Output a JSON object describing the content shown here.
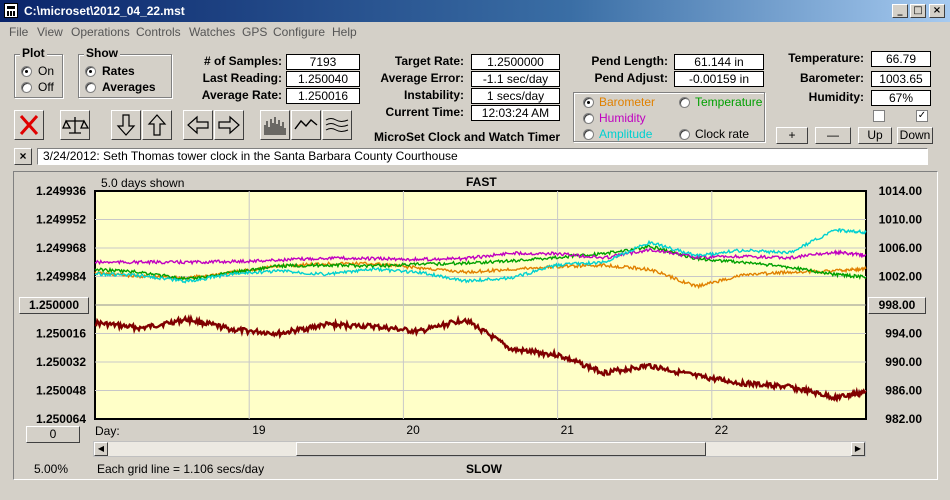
{
  "window": {
    "title": "C:\\microset\\2012_04_22.mst",
    "controls": [
      "_",
      "□",
      "×"
    ]
  },
  "menu": [
    "File",
    "View",
    "Operations",
    "Controls",
    "Watches",
    "GPS",
    "Configure",
    "Help"
  ],
  "plot": {
    "label": "Plot",
    "on": "On",
    "off": "Off",
    "selected": "On"
  },
  "show": {
    "label": "Show",
    "rates": "Rates",
    "averages": "Averages",
    "selected": "Rates"
  },
  "stats": {
    "samples_label": "# of Samples:",
    "samples": "7193",
    "last_label": "Last Reading:",
    "last": "1.250040",
    "avg_label": "Average Rate:",
    "avg": "1.250016",
    "target_label": "Target Rate:",
    "target": "1.2500000",
    "error_label": "Average Error:",
    "error": "-1.1 sec/day",
    "instab_label": "Instability:",
    "instab": "1 secs/day",
    "time_label": "Current Time:",
    "time": "12:03:24 AM",
    "pend_len_label": "Pend Length:",
    "pend_len": "61.144 in",
    "pend_adj_label": "Pend Adjust:",
    "pend_adj": "-0.00159 in",
    "temp_label": "Temperature:",
    "temp": "66.79",
    "baro_label": "Barometer:",
    "baro": "1003.65",
    "hum_label": "Humidity:",
    "hum": "67%"
  },
  "app_name": "MicroSet Clock and Watch Timer",
  "overlays": {
    "barometer": {
      "label": "Barometer",
      "color": "#e08000",
      "selected": true
    },
    "temperature": {
      "label": "Temperature",
      "color": "#00a000",
      "selected": false
    },
    "humidity": {
      "label": "Humidity",
      "color": "#c000c0",
      "selected": false
    },
    "amplitude": {
      "label": "Amplitude",
      "color": "#00d0d0",
      "selected": false
    },
    "clock_rate": {
      "label": "Clock rate",
      "color": "#000000",
      "selected": false
    }
  },
  "side_buttons": {
    "plus": "+",
    "minus": "—",
    "up": "Up",
    "down": "Down"
  },
  "note": {
    "close": "×",
    "text": "3/24/2012: Seth Thomas tower clock in the Santa Barbara County Courthouse"
  },
  "graph": {
    "days_shown": "5.0 days shown",
    "fast": "FAST",
    "slow": "SLOW",
    "center_left": "1.250000",
    "center_right": "998.00",
    "offset_value": "0",
    "day_label": "Day:",
    "zoom": "5.00%",
    "grid_note": "Each grid line = 1.106 secs/day",
    "scroll_position": 0.56
  },
  "chart_data": {
    "type": "line",
    "x_ticks": [
      "19",
      "20",
      "21",
      "22"
    ],
    "x_range_days": [
      18.0,
      23.0
    ],
    "y_left_ticks": [
      "1.249936",
      "1.249952",
      "1.249968",
      "1.249984",
      "1.250000",
      "1.250016",
      "1.250032",
      "1.250048",
      "1.250064"
    ],
    "y_left_range": [
      1.249936,
      1.250064
    ],
    "y_right_ticks": [
      "1014.00",
      "1010.00",
      "1006.00",
      "1002.00",
      "998.00",
      "994.00",
      "990.00",
      "986.00",
      "982.00"
    ],
    "y_right_range": [
      1014.0,
      982.0
    ],
    "grid": true,
    "series": [
      {
        "color": "#800000",
        "axis": "left",
        "x": [
          18.0,
          18.3,
          18.6,
          18.9,
          19.2,
          19.5,
          19.8,
          20.1,
          20.4,
          20.7,
          21.0,
          21.3,
          21.6,
          21.9,
          22.2,
          22.5,
          22.8,
          23.0
        ],
        "y": [
          1.25001,
          1.250013,
          1.250008,
          1.250014,
          1.250016,
          1.250011,
          1.250012,
          1.250015,
          1.250008,
          1.250025,
          1.250028,
          1.250038,
          1.250034,
          1.25004,
          1.250044,
          1.250046,
          1.250052,
          1.250049
        ]
      },
      {
        "color": "#e08000",
        "axis": "right",
        "x": [
          18.0,
          18.3,
          18.6,
          18.9,
          19.2,
          19.5,
          19.8,
          20.1,
          20.4,
          20.7,
          21.0,
          21.3,
          21.6,
          21.9,
          22.2,
          22.5,
          22.8,
          23.0
        ],
        "y": [
          1002.5,
          1002.0,
          1001.8,
          1002.6,
          1003.5,
          1003.8,
          1003.8,
          1003.2,
          1002.6,
          1003.0,
          1003.4,
          1003.6,
          1003.0,
          1000.6,
          1002.2,
          1002.6,
          1002.8,
          1003.1
        ]
      },
      {
        "color": "#00a000",
        "axis": "right",
        "x": [
          18.0,
          18.3,
          18.6,
          18.9,
          19.2,
          19.5,
          19.8,
          20.1,
          20.4,
          20.7,
          21.0,
          21.3,
          21.6,
          21.9,
          22.2,
          22.5,
          22.8,
          23.0
        ],
        "y": [
          1003.0,
          1002.6,
          1001.6,
          1002.6,
          1003.5,
          1003.6,
          1003.5,
          1003.7,
          1003.9,
          1004.2,
          1004.7,
          1005.2,
          1006.2,
          1004.5,
          1004.0,
          1003.3,
          1002.3,
          1001.9
        ]
      },
      {
        "color": "#c000c0",
        "axis": "right",
        "x": [
          18.0,
          18.3,
          18.6,
          18.9,
          19.2,
          19.5,
          19.8,
          20.1,
          20.4,
          20.7,
          21.0,
          21.3,
          21.6,
          21.9,
          22.2,
          22.5,
          22.8,
          23.0
        ],
        "y": [
          1004.0,
          1004.0,
          1004.0,
          1004.1,
          1004.3,
          1004.6,
          1004.5,
          1004.4,
          1004.5,
          1005.3,
          1005.2,
          1004.6,
          1005.8,
          1004.7,
          1004.8,
          1004.6,
          1005.4,
          1005.0
        ]
      },
      {
        "color": "#00d0d0",
        "axis": "right",
        "x": [
          18.0,
          18.3,
          18.6,
          18.9,
          19.2,
          19.5,
          19.8,
          20.1,
          20.4,
          20.7,
          21.0,
          21.3,
          21.6,
          21.9,
          22.2,
          22.5,
          22.8,
          23.0
        ],
        "y": [
          1002.4,
          1002.1,
          1001.3,
          1002.4,
          1002.8,
          1002.3,
          1003.0,
          1002.6,
          1001.4,
          1001.8,
          1003.6,
          1004.0,
          1006.8,
          1004.9,
          1005.7,
          1005.3,
          1008.5,
          1008.2
        ]
      }
    ]
  }
}
